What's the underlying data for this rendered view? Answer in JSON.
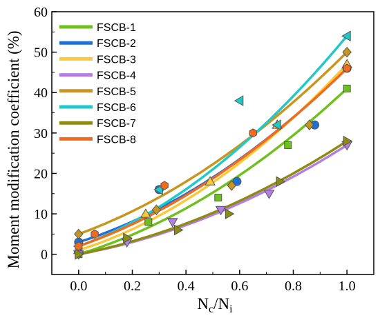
{
  "chart_data": {
    "type": "scatter",
    "xlabel": "N",
    "xlabel_sub_c": "c",
    "xlabel_slash": "/N",
    "xlabel_sub_i": "i",
    "ylabel": "Moment modification coefficient (%)",
    "xlim": [
      -0.1,
      1.1
    ],
    "ylim": [
      -5,
      60
    ],
    "x_ticks": [
      0.0,
      0.2,
      0.4,
      0.6,
      0.8,
      1.0
    ],
    "x_tick_labels": [
      "0.0",
      "0.2",
      "0.4",
      "0.6",
      "0.8",
      "1.0"
    ],
    "y_ticks": [
      0,
      10,
      20,
      30,
      40,
      50,
      60
    ],
    "y_tick_labels": [
      "0",
      "10",
      "20",
      "30",
      "40",
      "50",
      "60"
    ],
    "grid": false,
    "legend_position": "top-left",
    "series": [
      {
        "name": "FSCB-1",
        "color": "#6fbf1e",
        "marker": "square",
        "points": [
          [
            0,
            0
          ],
          [
            0.26,
            8
          ],
          [
            0.52,
            14
          ],
          [
            0.78,
            27
          ],
          [
            1.0,
            41
          ]
        ],
        "fit": [
          0,
          20,
          21
        ]
      },
      {
        "name": "FSCB-2",
        "color": "#1f6fd6",
        "marker": "circle",
        "points": [
          [
            0,
            3
          ],
          [
            0.3,
            16
          ],
          [
            0.59,
            18
          ],
          [
            0.88,
            32
          ],
          [
            1.0,
            46
          ]
        ],
        "fit": [
          3,
          21,
          22
        ]
      },
      {
        "name": "FSCB-3",
        "color": "#f9c93a",
        "marker": "triangle-up",
        "points": [
          [
            0,
            1
          ],
          [
            0.25,
            10
          ],
          [
            0.49,
            18
          ],
          [
            0.74,
            32
          ],
          [
            1.0,
            47
          ]
        ],
        "fit": [
          1,
          21,
          25
        ]
      },
      {
        "name": "FSCB-4",
        "color": "#b47ee6",
        "marker": "triangle-down",
        "points": [
          [
            0,
            0
          ],
          [
            0.18,
            3
          ],
          [
            0.35,
            8
          ],
          [
            0.53,
            11
          ],
          [
            0.71,
            15
          ],
          [
            1.0,
            27
          ]
        ],
        "fit": [
          0,
          12,
          15
        ]
      },
      {
        "name": "FSCB-5",
        "color": "#c8961e",
        "marker": "diamond",
        "points": [
          [
            0,
            5
          ],
          [
            0.29,
            11
          ],
          [
            0.57,
            17
          ],
          [
            0.86,
            32
          ],
          [
            1.0,
            50
          ]
        ],
        "fit": [
          5,
          24,
          21
        ]
      },
      {
        "name": "FSCB-6",
        "color": "#22c8c8",
        "marker": "triangle-left",
        "points": [
          [
            0,
            2
          ],
          [
            0.3,
            16
          ],
          [
            0.6,
            38
          ],
          [
            0.74,
            32
          ],
          [
            1.0,
            54
          ]
        ],
        "fit": [
          2,
          24,
          28
        ]
      },
      {
        "name": "FSCB-7",
        "color": "#8c8c10",
        "marker": "triangle-right",
        "points": [
          [
            0,
            0
          ],
          [
            0.18,
            4
          ],
          [
            0.37,
            6
          ],
          [
            0.56,
            10
          ],
          [
            0.75,
            18
          ],
          [
            1.0,
            28
          ]
        ],
        "fit": [
          0,
          13,
          15
        ]
      },
      {
        "name": "FSCB-8",
        "color": "#f26b1d",
        "marker": "hexagon",
        "points": [
          [
            0,
            2
          ],
          [
            0.06,
            5
          ],
          [
            0.32,
            17
          ],
          [
            0.65,
            30
          ],
          [
            1.0,
            46
          ]
        ],
        "fit": [
          2,
          23,
          21
        ]
      }
    ]
  }
}
